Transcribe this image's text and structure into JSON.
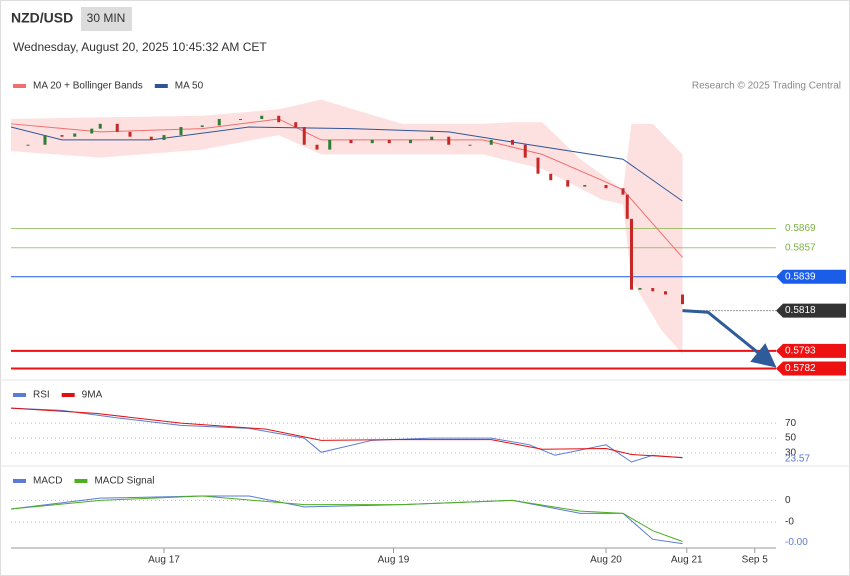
{
  "header": {
    "symbol": "NZD/USD",
    "interval": "30 MIN",
    "timestamp": "Wednesday, August 20, 2025 10:45:32 AM CET",
    "credit": "Research © 2025 Trading Central"
  },
  "chart_data": [
    {
      "type": "candlestick",
      "up_color": "#2e7d32",
      "down_color": "#c62828",
      "x": [
        0,
        4,
        8,
        12,
        15,
        19,
        21,
        25,
        28,
        33,
        36,
        40,
        45,
        49,
        54,
        59,
        63,
        67,
        69,
        72,
        75,
        80,
        85,
        89,
        94,
        99,
        103,
        108,
        113,
        118,
        121,
        124,
        127,
        131,
        135,
        140,
        144,
        145,
        146,
        148,
        151,
        154,
        158
      ],
      "values": [
        0.5921,
        0.5921,
        0.5927,
        0.5926,
        0.5928,
        0.5931,
        0.5934,
        0.5929,
        0.5926,
        0.5924,
        0.5927,
        0.5932,
        0.5933,
        0.5937,
        0.5937,
        0.5939,
        0.5935,
        0.5932,
        0.5921,
        0.5918,
        0.5924,
        0.5922,
        0.5924,
        0.5922,
        0.5924,
        0.5926,
        0.5921,
        0.5921,
        0.5924,
        0.5921,
        0.5913,
        0.5903,
        0.5899,
        0.5895,
        0.5896,
        0.5894,
        0.589,
        0.5875,
        0.5831,
        0.5832,
        0.583,
        0.5828,
        0.5822
      ],
      "series": [
        {
          "name": "MA 20 + Bollinger Bands",
          "color": "#f07070",
          "x": [
            0,
            21,
            45,
            63,
            73,
            92,
            111,
            125,
            139,
            144,
            158
          ],
          "values": [
            0.5934,
            0.5929,
            0.5931,
            0.5937,
            0.5924,
            0.5924,
            0.5924,
            0.5915,
            0.5899,
            0.5893,
            0.5851
          ]
        },
        {
          "name": "MA 50",
          "color": "#2f5597",
          "x": [
            0,
            12,
            33,
            56,
            80,
            103,
            122,
            144,
            158
          ],
          "values": [
            0.5932,
            0.5924,
            0.5924,
            0.5932,
            0.5931,
            0.5929,
            0.5921,
            0.5912,
            0.5886
          ]
        }
      ],
      "bands": {
        "color": "#fde0e0",
        "upper": {
          "x": [
            0,
            21,
            45,
            63,
            73,
            92,
            111,
            118,
            125,
            134,
            144,
            146,
            151,
            158
          ],
          "values": [
            0.5937,
            0.5938,
            0.5939,
            0.5943,
            0.5949,
            0.5934,
            0.5934,
            0.5935,
            0.5935,
            0.5912,
            0.5893,
            0.5934,
            0.5934,
            0.5915
          ]
        },
        "lower": {
          "x": [
            0,
            21,
            45,
            63,
            73,
            92,
            111,
            125,
            139,
            144,
            146,
            153,
            158
          ],
          "values": [
            0.5917,
            0.5913,
            0.5918,
            0.5927,
            0.5915,
            0.5915,
            0.5915,
            0.5906,
            0.5887,
            0.5884,
            0.5837,
            0.5806,
            0.5791
          ]
        }
      },
      "levels": [
        {
          "value": 0.5869,
          "color": "#7cb342",
          "boxed": false,
          "dotted": false
        },
        {
          "value": 0.5857,
          "color": "#7cb342",
          "boxed": false,
          "dotted": false
        },
        {
          "value": 0.5839,
          "color": "#1a5de8",
          "boxed": true,
          "dotted": false
        },
        {
          "value": 0.5818,
          "color": "#333333",
          "boxed": true,
          "dotted": true
        },
        {
          "value": 0.5793,
          "color": "#ee1111",
          "boxed": true,
          "dotted": false
        },
        {
          "value": 0.5782,
          "color": "#ee1111",
          "boxed": true,
          "dotted": false
        }
      ],
      "forecast": {
        "color": "#2e5b9a",
        "x": [
          158,
          164,
          179
        ],
        "values": [
          0.5818,
          0.5817,
          0.5785
        ]
      },
      "xlim": [
        0,
        180
      ],
      "ylim": [
        0.5778,
        0.5955
      ],
      "xticks": [
        {
          "value": 36,
          "label": "Aug 17"
        },
        {
          "value": 90,
          "label": "Aug 19"
        },
        {
          "value": 140,
          "label": "Aug 20"
        },
        {
          "value": 159,
          "label": "Aug 21"
        },
        {
          "value": 175,
          "label": "Sep 5"
        }
      ]
    },
    {
      "type": "line",
      "xlim": [
        0,
        180
      ],
      "ylim": [
        14,
        125
      ],
      "yticks": [
        70,
        50,
        30
      ],
      "current": 23.57,
      "series": [
        {
          "name": "RSI",
          "color": "#5b7bd5",
          "x": [
            0,
            12,
            25,
            40,
            56,
            69,
            73,
            85,
            99,
            113,
            122,
            128,
            140,
            146,
            151,
            158
          ],
          "values": [
            90,
            87,
            77,
            67,
            63,
            50,
            31,
            47,
            50,
            50,
            41,
            27,
            41,
            18,
            27,
            23.57
          ]
        },
        {
          "name": "9MA",
          "color": "#e01010",
          "x": [
            0,
            20,
            40,
            60,
            73,
            90,
            113,
            125,
            140,
            146,
            158
          ],
          "values": [
            90,
            83,
            70,
            62,
            47,
            48,
            48,
            35,
            36,
            28,
            24
          ]
        }
      ]
    },
    {
      "type": "line",
      "xlim": [
        0,
        180
      ],
      "ylim": [
        -0.0022,
        0.0014
      ],
      "yticks": [
        0,
        {
          "value": -0.001,
          "label": "-0"
        }
      ],
      "current": {
        "value": -0.0019,
        "label": "-0.00"
      },
      "series": [
        {
          "name": "MACD",
          "color": "#5b7bd5",
          "x": [
            0,
            21,
            45,
            56,
            69,
            92,
            118,
            134,
            144,
            151,
            158
          ],
          "values": [
            -0.0004,
            0.0001,
            0.0002,
            0.0002,
            -0.0003,
            -0.0002,
            0,
            -0.0006,
            -0.0006,
            -0.0018,
            -0.002
          ]
        },
        {
          "name": "MACD Signal",
          "color": "#4caf20",
          "x": [
            0,
            21,
            45,
            69,
            92,
            118,
            134,
            144,
            151,
            158
          ],
          "values": [
            -0.0004,
            0,
            0.0002,
            -0.0002,
            -0.0002,
            0,
            -0.0005,
            -0.0006,
            -0.0014,
            -0.0019
          ]
        }
      ]
    }
  ]
}
